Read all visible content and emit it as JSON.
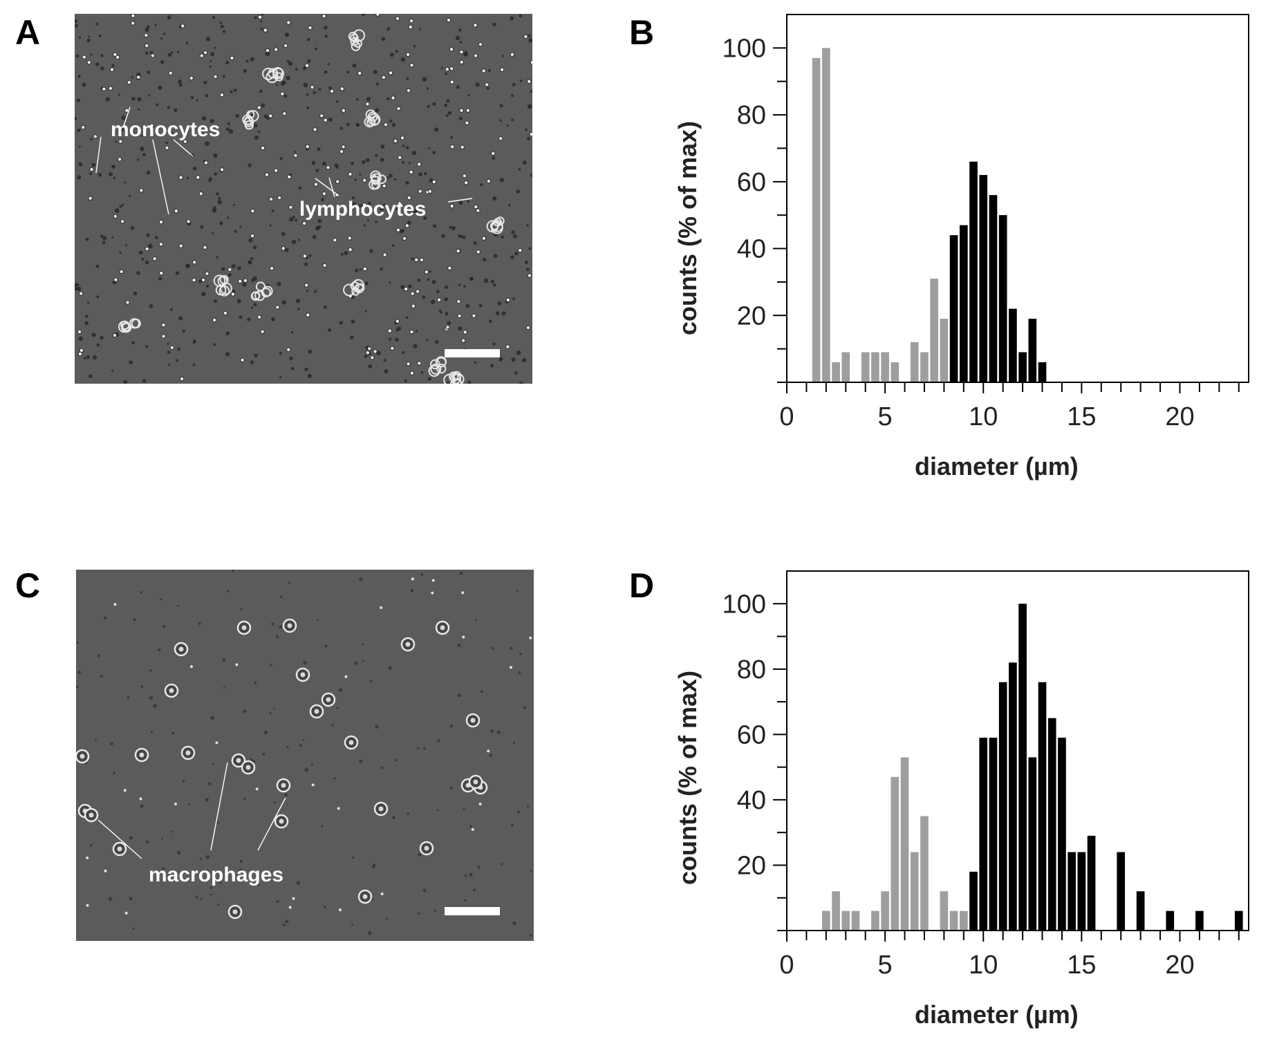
{
  "panels": {
    "A": {
      "label": "A",
      "annotations": {
        "monocytes": "monocytes",
        "lymphocytes": "lymphocytes"
      }
    },
    "B": {
      "label": "B"
    },
    "C": {
      "label": "C",
      "annotations": {
        "macrophages": "macrophages"
      }
    },
    "D": {
      "label": "D"
    }
  },
  "colors": {
    "primary": "#000000",
    "secondary": "#9e9e9e",
    "micrograph_bg": "#5b5b5b"
  },
  "chart_data": [
    {
      "panel": "B",
      "type": "bar",
      "title": "",
      "xlabel": "diameter (µm)",
      "ylabel": "counts (% of max)",
      "xlim": [
        0,
        23.5
      ],
      "ylim": [
        0,
        110
      ],
      "xticks": [
        0,
        5,
        10,
        15,
        20
      ],
      "yticks": [
        20,
        40,
        60,
        80,
        100
      ],
      "grid": false,
      "series": [
        {
          "color": "secondary",
          "x": [
            1.5,
            2,
            2.5,
            3,
            4,
            4.5,
            5,
            5.5,
            6.5,
            7,
            7.5,
            8
          ],
          "values": [
            97,
            100,
            6,
            9,
            9,
            9,
            9,
            6,
            12,
            9,
            31,
            19
          ]
        },
        {
          "color": "primary",
          "x": [
            8.5,
            9,
            9.5,
            10,
            10.5,
            11,
            11.5,
            12,
            12.5,
            13
          ],
          "values": [
            44,
            47,
            66,
            62,
            56,
            50,
            22,
            9,
            19,
            6
          ]
        }
      ]
    },
    {
      "panel": "D",
      "type": "bar",
      "title": "",
      "xlabel": "diameter (µm)",
      "ylabel": "counts (% of max)",
      "xlim": [
        0,
        23.5
      ],
      "ylim": [
        0,
        110
      ],
      "xticks": [
        0,
        5,
        10,
        15,
        20
      ],
      "yticks": [
        20,
        40,
        60,
        80,
        100
      ],
      "grid": false,
      "series": [
        {
          "color": "secondary",
          "x": [
            2,
            2.5,
            3,
            3.5,
            4.5,
            5,
            5.5,
            6,
            6.5,
            7,
            8,
            8.5,
            9
          ],
          "values": [
            6,
            12,
            6,
            6,
            6,
            12,
            47,
            53,
            24,
            35,
            12,
            6,
            6
          ]
        },
        {
          "color": "primary",
          "x": [
            9.5,
            10,
            10.5,
            11,
            11.5,
            12,
            12.5,
            13,
            13.5,
            14,
            14.5,
            15,
            15.5,
            17,
            18,
            19.5,
            21,
            23
          ],
          "values": [
            18,
            59,
            59,
            76,
            82,
            100,
            53,
            76,
            65,
            59,
            24,
            24,
            29,
            24,
            12,
            6,
            6,
            6
          ]
        }
      ]
    }
  ]
}
